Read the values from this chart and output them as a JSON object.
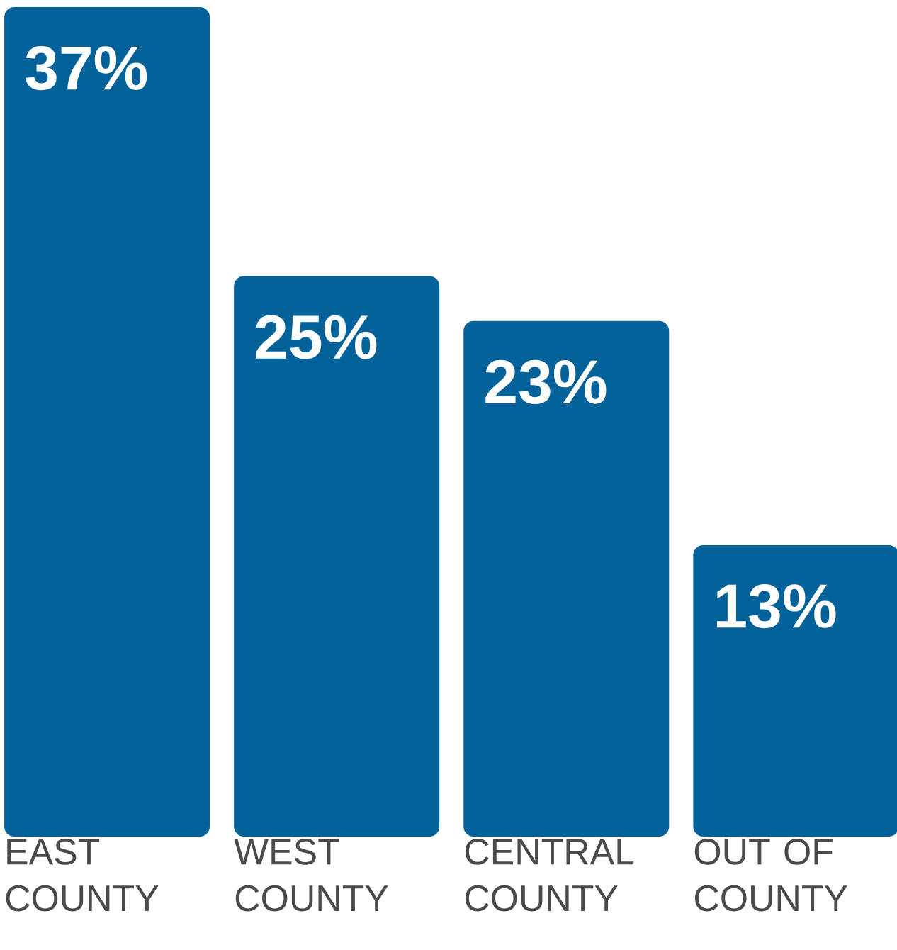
{
  "chart_data": {
    "type": "bar",
    "categories": [
      "EAST COUNTY",
      "WEST COUNTY",
      "CENTRAL COUNTY",
      "OUT OF COUNTY"
    ],
    "values": [
      37,
      25,
      23,
      13
    ],
    "value_labels": [
      "37%",
      "25%",
      "23%",
      "13%"
    ],
    "color": "#04629a",
    "tick_labels": "x"
  }
}
